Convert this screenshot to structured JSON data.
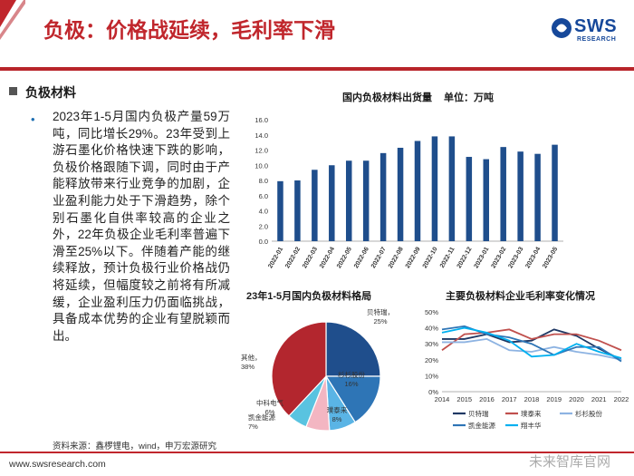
{
  "header": {
    "title": "负极：价格战延续，毛利率下滑",
    "logo_text": "SWS",
    "logo_sub": "RESEARCH",
    "brand_color": "#16489a",
    "accent_color": "#c0262c"
  },
  "section": {
    "title": "负极材料",
    "bullet": "•",
    "body": "2023年1-5月国内负极产量59万吨，同比增长29%。23年受到上游石墨化价格快速下跌的影响，负极价格跟随下调，同时由于产能释放带来行业竞争的加剧，企业盈利能力处于下滑趋势，除个别石墨化自供率较高的企业之外，22年负极企业毛利率普遍下滑至25%以下。伴随着产能的继续释放，预计负极行业价格战仍将延续，但幅度较之前将有所减缓，企业盈利压力仍面临挑战，具备成本优势的企业有望脱颖而出。"
  },
  "footer": {
    "source": "资料来源：鑫椤锂电，wind，申万宏源研究",
    "url": "www.swsresearch.com",
    "watermark": "未来智库官网"
  },
  "chart_data": [
    {
      "type": "bar",
      "title": "国内负极材料出货量",
      "unit_label": "单位：万吨",
      "categories": [
        "2022-01",
        "2022-02",
        "2022-03",
        "2022-04",
        "2022-05",
        "2022-06",
        "2022-07",
        "2022-08",
        "2022-09",
        "2022-10",
        "2022-11",
        "2022-12",
        "2023-01",
        "2023-02",
        "2023-03",
        "2023-04",
        "2023-05"
      ],
      "values": [
        7.9,
        8.0,
        9.4,
        10.0,
        10.6,
        10.6,
        11.6,
        12.3,
        13.2,
        13.8,
        13.8,
        11.1,
        10.8,
        12.4,
        11.8,
        11.5,
        12.7
      ],
      "yticks": [
        "0.0",
        "2.0",
        "4.0",
        "6.0",
        "8.0",
        "10.0",
        "12.0",
        "14.0",
        "16.0"
      ],
      "ylim": [
        0,
        16
      ],
      "color": "#1f4e8c"
    },
    {
      "type": "pie",
      "title": "23年1-5月国内负极材料格局",
      "slices": [
        {
          "label": "贝特瑞",
          "pct_label": "25%",
          "value": 25,
          "color": "#1f4e8c"
        },
        {
          "label": "杉杉股份",
          "pct_label": "16%",
          "value": 16,
          "color": "#2e75b6"
        },
        {
          "label": "璞泰来",
          "pct_label": "8%",
          "value": 8,
          "color": "#5ab4e5"
        },
        {
          "label": "凯金能源",
          "pct_label": "7%",
          "value": 7,
          "color": "#f3b6c2"
        },
        {
          "label": "中科电气",
          "pct_label": "6%",
          "value": 6,
          "color": "#59c3e0"
        },
        {
          "label": "其他",
          "pct_label": "38%",
          "value": 38,
          "color": "#b3262e"
        }
      ]
    },
    {
      "type": "line",
      "title": "主要负极材料企业毛利率变化情况",
      "x": [
        "2014",
        "2015",
        "2016",
        "2017",
        "2018",
        "2019",
        "2020",
        "2021",
        "2022"
      ],
      "yticks": [
        "0%",
        "10%",
        "20%",
        "30%",
        "40%",
        "50%"
      ],
      "ylim": [
        0,
        50
      ],
      "series": [
        {
          "name": "贝特瑞",
          "color": "#1f3864",
          "values": [
            33,
            33,
            36,
            31,
            32,
            39,
            35,
            27,
            20
          ]
        },
        {
          "name": "璞泰来",
          "color": "#c0504d",
          "values": [
            26,
            36,
            37,
            39,
            33,
            36,
            36,
            32,
            26
          ]
        },
        {
          "name": "杉杉股份",
          "color": "#8db3e2",
          "values": [
            31,
            31,
            33,
            26,
            25,
            28,
            25,
            23,
            20
          ]
        },
        {
          "name": "凯金能源",
          "color": "#2e75b6",
          "values": [
            39,
            41,
            36,
            34,
            30,
            23,
            28,
            28,
            19
          ]
        },
        {
          "name": "翔丰华",
          "color": "#00b0f0",
          "values": [
            37,
            40,
            37,
            32,
            22,
            23,
            30,
            25,
            21
          ]
        }
      ]
    }
  ]
}
